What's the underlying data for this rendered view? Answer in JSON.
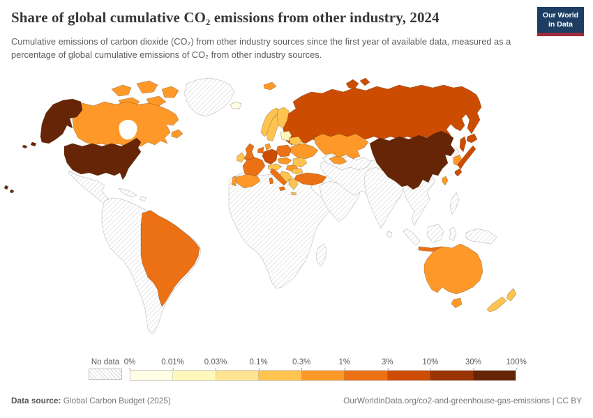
{
  "header": {
    "title": "Share of global cumulative CO₂ emissions from other industry, 2024",
    "logo": {
      "line1": "Our World",
      "line2": "in Data"
    }
  },
  "subtitle": "Cumulative emissions of carbon dioxide (CO₂) from other industry sources since the first year of available data, measured as a percentage of global cumulative emissions of CO₂ from other industry sources.",
  "legend": {
    "no_data_label": "No data",
    "ticks": [
      "0%",
      "0.01%",
      "0.03%",
      "0.1%",
      "0.3%",
      "1%",
      "3%",
      "10%",
      "30%",
      "100%"
    ],
    "colors": [
      "#ffffe5",
      "#fff7bc",
      "#fee391",
      "#fec44f",
      "#fe9929",
      "#ec7014",
      "#cc4c02",
      "#993404",
      "#662506"
    ]
  },
  "footer": {
    "source_label": "Data source:",
    "source_value": " Global Carbon Budget (2025)",
    "credit": "OurWorldinData.org/co2-and-greenhouse-gas-emissions | CC BY"
  },
  "chart_data": {
    "type": "choropleth_map",
    "title": "Share of global cumulative CO₂ emissions from other industry, 2024",
    "unit": "% of global cumulative CO₂ emissions from other industry",
    "projection": "world",
    "legend_position": "bottom",
    "bins": [
      {
        "range": "0–0.01%",
        "color": "#ffffe5"
      },
      {
        "range": "0.01–0.03%",
        "color": "#fff7bc"
      },
      {
        "range": "0.03–0.1%",
        "color": "#fee391"
      },
      {
        "range": "0.1–0.3%",
        "color": "#fec44f"
      },
      {
        "range": "0.3–1%",
        "color": "#fe9929"
      },
      {
        "range": "1–3%",
        "color": "#ec7014"
      },
      {
        "range": "3–10%",
        "color": "#cc4c02"
      },
      {
        "range": "10–30%",
        "color": "#993404"
      },
      {
        "range": "30–100%",
        "color": "#662506"
      }
    ],
    "regions": [
      {
        "id": "usa",
        "label": "United States",
        "bin": 8,
        "range": "30–100%"
      },
      {
        "id": "china",
        "label": "China",
        "bin": 8,
        "range": "30–100%"
      },
      {
        "id": "russia",
        "label": "Russia",
        "bin": 6,
        "range": "3–10%"
      },
      {
        "id": "germany",
        "label": "Germany",
        "bin": 6,
        "range": "3–10%"
      },
      {
        "id": "japan",
        "label": "Japan",
        "bin": 6,
        "range": "3–10%"
      },
      {
        "id": "uk",
        "label": "United Kingdom",
        "bin": 5,
        "range": "1–3%"
      },
      {
        "id": "france",
        "label": "France",
        "bin": 5,
        "range": "1–3%"
      },
      {
        "id": "italy",
        "label": "Italy",
        "bin": 5,
        "range": "1–3%"
      },
      {
        "id": "poland",
        "label": "Poland",
        "bin": 5,
        "range": "1–3%"
      },
      {
        "id": "turkey",
        "label": "Turkey",
        "bin": 5,
        "range": "1–3%"
      },
      {
        "id": "brazil",
        "label": "Brazil",
        "bin": 5,
        "range": "1–3%"
      },
      {
        "id": "benelux",
        "label": "Netherlands/Belgium",
        "bin": 5,
        "range": "1–3%"
      },
      {
        "id": "java",
        "label": "Indonesia",
        "bin": 5,
        "range": "1–3%"
      },
      {
        "id": "canada",
        "label": "Canada",
        "bin": 4,
        "range": "0.3–1%"
      },
      {
        "id": "spain",
        "label": "Spain",
        "bin": 4,
        "range": "0.3–1%"
      },
      {
        "id": "portugal",
        "label": "Portugal",
        "bin": 4,
        "range": "0.3–1%"
      },
      {
        "id": "denmark",
        "label": "Denmark",
        "bin": 4,
        "range": "0.3–1%"
      },
      {
        "id": "czech-slovakia",
        "label": "Czechia/Slovakia",
        "bin": 4,
        "range": "0.3–1%"
      },
      {
        "id": "hungary",
        "label": "Hungary",
        "bin": 4,
        "range": "0.3–1%"
      },
      {
        "id": "ukraine",
        "label": "Ukraine",
        "bin": 4,
        "range": "0.3–1%"
      },
      {
        "id": "kazakhstan",
        "label": "Kazakhstan",
        "bin": 4,
        "range": "0.3–1%"
      },
      {
        "id": "caucasus",
        "label": "Caucasus",
        "bin": 4,
        "range": "0.3–1%"
      },
      {
        "id": "south-korea",
        "label": "South Korea",
        "bin": 4,
        "range": "0.3–1%"
      },
      {
        "id": "taiwan",
        "label": "Taiwan",
        "bin": 4,
        "range": "0.3–1%"
      },
      {
        "id": "australia",
        "label": "Australia",
        "bin": 4,
        "range": "0.3–1%"
      },
      {
        "id": "svalbard",
        "label": "Svalbard",
        "bin": 4,
        "range": "0.3–1%"
      },
      {
        "id": "norway",
        "label": "Norway",
        "bin": 3,
        "range": "0.1–0.3%"
      },
      {
        "id": "sweden",
        "label": "Sweden",
        "bin": 3,
        "range": "0.1–0.3%"
      },
      {
        "id": "finland",
        "label": "Finland",
        "bin": 3,
        "range": "0.1–0.3%"
      },
      {
        "id": "ireland",
        "label": "Ireland",
        "bin": 3,
        "range": "0.1–0.3%"
      },
      {
        "id": "belarus",
        "label": "Belarus",
        "bin": 3,
        "range": "0.1–0.3%"
      },
      {
        "id": "romania",
        "label": "Romania",
        "bin": 3,
        "range": "0.1–0.3%"
      },
      {
        "id": "bulgaria",
        "label": "Bulgaria",
        "bin": 3,
        "range": "0.1–0.3%"
      },
      {
        "id": "balkans",
        "label": "Balkans",
        "bin": 3,
        "range": "0.1–0.3%"
      },
      {
        "id": "greece",
        "label": "Greece",
        "bin": 3,
        "range": "0.1–0.3%"
      },
      {
        "id": "austria-switzerland",
        "label": "Austria/Switzerland",
        "bin": 3,
        "range": "0.1–0.3%"
      },
      {
        "id": "new-zealand",
        "label": "New Zealand",
        "bin": 3,
        "range": "0.1–0.3%"
      },
      {
        "id": "baltics",
        "label": "Baltic states",
        "bin": 1,
        "range": "0.01–0.03%"
      },
      {
        "id": "iceland",
        "label": "Iceland",
        "bin": 0,
        "range": "0–0.01%"
      },
      {
        "id": "greenland",
        "label": "Greenland",
        "bin": null,
        "range": "No data"
      },
      {
        "id": "mexico",
        "label": "Mexico & Central America",
        "bin": null,
        "range": "No data"
      },
      {
        "id": "caribbean",
        "label": "Caribbean",
        "bin": null,
        "range": "No data"
      },
      {
        "id": "south-america",
        "label": "South America (excl. Brazil)",
        "bin": null,
        "range": "No data"
      },
      {
        "id": "africa",
        "label": "Africa",
        "bin": null,
        "range": "No data"
      },
      {
        "id": "madagascar",
        "label": "Madagascar",
        "bin": null,
        "range": "No data"
      },
      {
        "id": "arabia",
        "label": "Arabian Peninsula",
        "bin": null,
        "range": "No data"
      },
      {
        "id": "iran-stan",
        "label": "Iran & Central-South Asia",
        "bin": null,
        "range": "No data"
      },
      {
        "id": "central-asia",
        "label": "Central Asia",
        "bin": null,
        "range": "No data"
      },
      {
        "id": "india",
        "label": "India",
        "bin": null,
        "range": "No data"
      },
      {
        "id": "sri-lanka",
        "label": "Sri Lanka",
        "bin": null,
        "range": "No data"
      },
      {
        "id": "se-asia",
        "label": "Southeast Asia",
        "bin": null,
        "range": "No data"
      },
      {
        "id": "sumatra",
        "label": "Sumatra",
        "bin": null,
        "range": "No data"
      },
      {
        "id": "borneo",
        "label": "Borneo",
        "bin": null,
        "range": "No data"
      },
      {
        "id": "sulawesi",
        "label": "Sulawesi",
        "bin": null,
        "range": "No data"
      },
      {
        "id": "new-guinea",
        "label": "New Guinea",
        "bin": null,
        "range": "No data"
      },
      {
        "id": "philippines",
        "label": "Philippines",
        "bin": null,
        "range": "No data"
      },
      {
        "id": "mongolia",
        "label": "Mongolia",
        "bin": null,
        "range": "No data"
      },
      {
        "id": "north-korea",
        "label": "North Korea",
        "bin": null,
        "range": "No data"
      }
    ]
  }
}
